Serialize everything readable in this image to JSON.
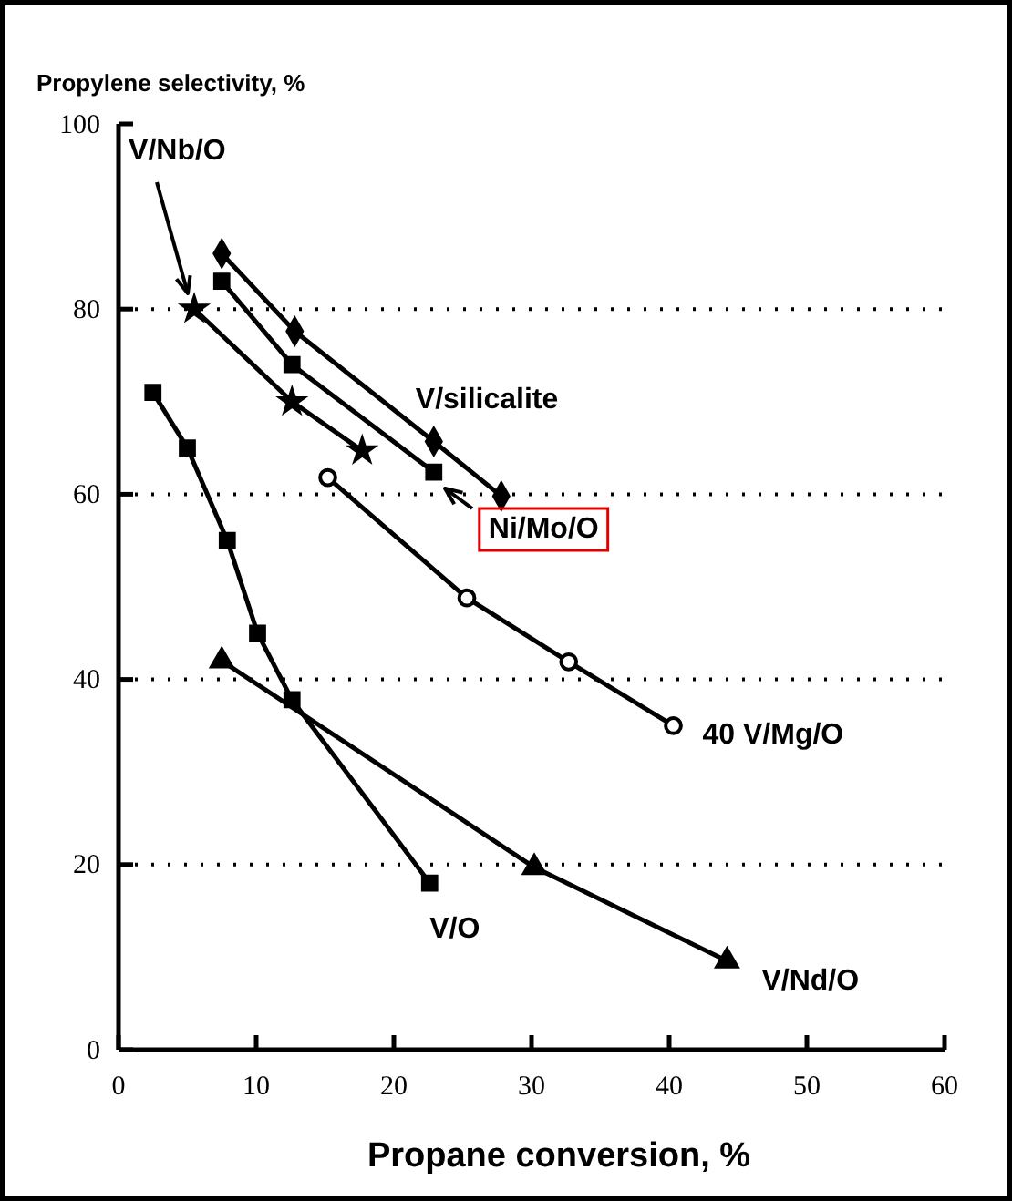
{
  "chart_data": {
    "type": "line",
    "xlabel": "Propane conversion, %",
    "ylabel": "Propylene selectivity, %",
    "xlim": [
      0,
      60
    ],
    "xticks": [
      0,
      10,
      20,
      30,
      40,
      50,
      60
    ],
    "ylim": [
      0,
      100
    ],
    "yticks": [
      0,
      20,
      40,
      60,
      80,
      100
    ],
    "grid": "y",
    "line_style": "solid",
    "series": [
      {
        "name": "V/silicalite",
        "color": "#000000",
        "marker": "diamond",
        "x": [
          7.5,
          12.8,
          22.9,
          27.8
        ],
        "values": [
          86,
          77.6,
          65.7,
          59.8
        ]
      },
      {
        "name": "Ni/Mo/O",
        "color": "#000000",
        "marker": "square",
        "x": [
          7.5,
          12.6,
          22.9
        ],
        "values": [
          83,
          74,
          62.4
        ]
      },
      {
        "name": "V/Nb/O",
        "color": "#000000",
        "marker": "star",
        "x": [
          5.5,
          12.6,
          17.7
        ],
        "values": [
          80,
          70,
          64.7
        ]
      },
      {
        "name": "40 V/Mg/O",
        "color": "#000000",
        "marker": "circle",
        "x": [
          15.2,
          25.3,
          32.7,
          40.3
        ],
        "values": [
          61.8,
          48.8,
          41.9,
          35
        ]
      },
      {
        "name": "V/O",
        "color": "#000000",
        "marker": "square",
        "x": [
          2.5,
          5,
          7.9,
          10.1,
          12.6,
          22.6
        ],
        "values": [
          71,
          65,
          55,
          45,
          37.8,
          18
        ]
      },
      {
        "name": "V/Nd/O",
        "color": "#000000",
        "marker": "triangle",
        "x": [
          7.5,
          30.2,
          44.2
        ],
        "values": [
          42,
          19.7,
          9.6
        ]
      }
    ]
  }
}
